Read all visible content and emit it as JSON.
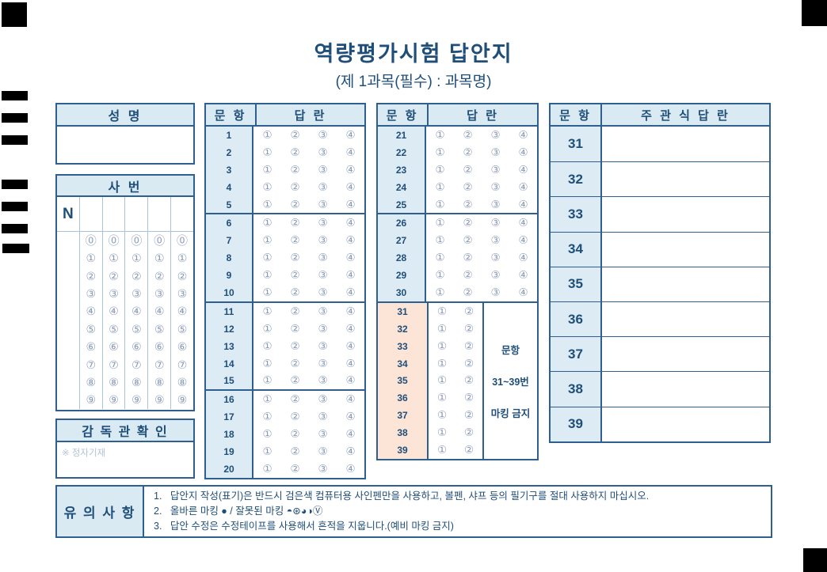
{
  "title": "역량평가시험 답안지",
  "subtitle": "(제 1과목(필수) : 과목명)",
  "name_box": {
    "header": "성 명"
  },
  "id_box": {
    "header": "사 번",
    "prefix": "N",
    "digit_columns": 5,
    "digits": [
      "⓪",
      "①",
      "②",
      "③",
      "④",
      "⑤",
      "⑥",
      "⑦",
      "⑧",
      "⑨"
    ]
  },
  "supervisor_box": {
    "header": "감 독 관  확 인",
    "note": "※ 정자기재"
  },
  "objective1": {
    "question_header": "문 항",
    "answer_header": "답 란",
    "groups": [
      [
        1,
        2,
        3,
        4,
        5
      ],
      [
        6,
        7,
        8,
        9,
        10
      ],
      [
        11,
        12,
        13,
        14,
        15
      ],
      [
        16,
        17,
        18,
        19,
        20
      ]
    ],
    "options": [
      "①",
      "②",
      "③",
      "④"
    ]
  },
  "objective2": {
    "question_header": "문 항",
    "answer_header": "답 란",
    "groups4": [
      [
        21,
        22,
        23,
        24,
        25
      ],
      [
        26,
        27,
        28,
        29,
        30
      ]
    ],
    "group2": [
      31,
      32,
      33,
      34,
      35,
      36,
      37,
      38,
      39
    ],
    "options4": [
      "①",
      "②",
      "③",
      "④"
    ],
    "options2": [
      "①",
      "②"
    ],
    "no_marking": [
      "문항",
      "31~39번",
      "마킹 금지"
    ]
  },
  "subjective": {
    "question_header": "문 항",
    "answer_header": "주 관 식  답 란",
    "questions": [
      31,
      32,
      33,
      34,
      35,
      36,
      37,
      38,
      39
    ]
  },
  "notice": {
    "header": "유 의 사 항",
    "items": [
      "1.   답안지 작성(표기)은 반드시 검은색 컴퓨터용 사인펜만을 사용하고, 볼펜, 샤프 등의 필기구를 절대 사용하지 마십시오.",
      "2.   올바른 마킹 ● / 잘못된 마킹 ◓⊛◕◑Ⓥ",
      "3.   답안 수정은 수정테이프를 사용해서 흔적을 지웁니다.(예비 마킹 금지)"
    ]
  },
  "colors": {
    "accent": "#1f4e79",
    "border": "#2e5f8e",
    "header_bg": "#daeaf3",
    "peach_bg": "#fce4d6",
    "bubble": "#8a9ab8",
    "mark": "#000000"
  }
}
